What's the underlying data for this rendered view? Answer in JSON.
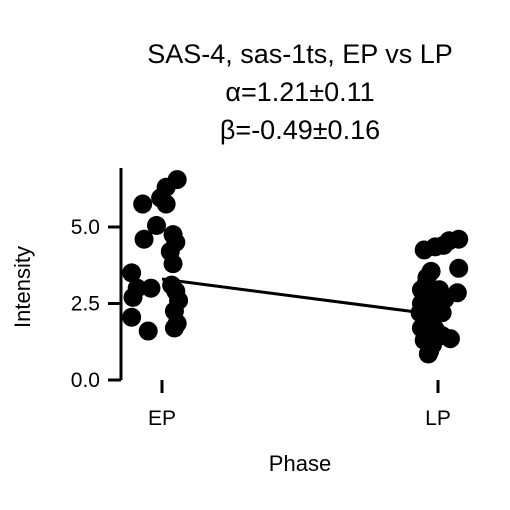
{
  "chart_data": {
    "type": "scatter",
    "title_lines": [
      "SAS-4, sas-1ts, EP vs LP",
      "α=1.21±0.11",
      "β=-0.49±0.16"
    ],
    "xlabel": "Phase",
    "ylabel": "Intensity",
    "categories": [
      "EP",
      "LP"
    ],
    "ylim": [
      0,
      6.9
    ],
    "yticks": [
      0.0,
      2.5,
      5.0
    ],
    "ytick_labels": [
      "0.0",
      "2.5",
      "5.0"
    ],
    "grid": false,
    "points": [
      {
        "category": "EP",
        "jitter": 0.11,
        "y": 6.55
      },
      {
        "category": "EP",
        "jitter": 0.03,
        "y": 6.3
      },
      {
        "category": "EP",
        "jitter": -0.14,
        "y": 5.75
      },
      {
        "category": "EP",
        "jitter": 0.03,
        "y": 5.75
      },
      {
        "category": "EP",
        "jitter": -0.01,
        "y": 5.95
      },
      {
        "category": "EP",
        "jitter": -0.04,
        "y": 5.05
      },
      {
        "category": "EP",
        "jitter": 0.08,
        "y": 4.75
      },
      {
        "category": "EP",
        "jitter": 0.1,
        "y": 4.5
      },
      {
        "category": "EP",
        "jitter": -0.13,
        "y": 4.6
      },
      {
        "category": "EP",
        "jitter": 0.06,
        "y": 4.2
      },
      {
        "category": "EP",
        "jitter": 0.08,
        "y": 3.8
      },
      {
        "category": "EP",
        "jitter": -0.22,
        "y": 3.5
      },
      {
        "category": "EP",
        "jitter": -0.18,
        "y": 3.0
      },
      {
        "category": "EP",
        "jitter": -0.08,
        "y": 3.0
      },
      {
        "category": "EP",
        "jitter": 0.07,
        "y": 3.1
      },
      {
        "category": "EP",
        "jitter": 0.1,
        "y": 2.9
      },
      {
        "category": "EP",
        "jitter": -0.21,
        "y": 2.7
      },
      {
        "category": "EP",
        "jitter": 0.12,
        "y": 2.6
      },
      {
        "category": "EP",
        "jitter": 0.09,
        "y": 2.25
      },
      {
        "category": "EP",
        "jitter": -0.22,
        "y": 2.05
      },
      {
        "category": "EP",
        "jitter": 0.11,
        "y": 1.85
      },
      {
        "category": "EP",
        "jitter": 0.09,
        "y": 1.7
      },
      {
        "category": "EP",
        "jitter": -0.1,
        "y": 1.6
      },
      {
        "category": "LP",
        "jitter": 0.15,
        "y": 4.6
      },
      {
        "category": "LP",
        "jitter": 0.08,
        "y": 4.55
      },
      {
        "category": "LP",
        "jitter": 0.04,
        "y": 4.4
      },
      {
        "category": "LP",
        "jitter": -0.02,
        "y": 4.35
      },
      {
        "category": "LP",
        "jitter": -0.1,
        "y": 4.25
      },
      {
        "category": "LP",
        "jitter": 0.15,
        "y": 3.65
      },
      {
        "category": "LP",
        "jitter": -0.05,
        "y": 3.55
      },
      {
        "category": "LP",
        "jitter": -0.08,
        "y": 3.35
      },
      {
        "category": "LP",
        "jitter": -0.09,
        "y": 3.1
      },
      {
        "category": "LP",
        "jitter": -0.12,
        "y": 2.95
      },
      {
        "category": "LP",
        "jitter": 0.01,
        "y": 2.95
      },
      {
        "category": "LP",
        "jitter": -0.02,
        "y": 2.7
      },
      {
        "category": "LP",
        "jitter": 0.14,
        "y": 2.85
      },
      {
        "category": "LP",
        "jitter": 0.05,
        "y": 2.65
      },
      {
        "category": "LP",
        "jitter": -0.12,
        "y": 2.5
      },
      {
        "category": "LP",
        "jitter": -0.07,
        "y": 2.4
      },
      {
        "category": "LP",
        "jitter": -0.13,
        "y": 2.2
      },
      {
        "category": "LP",
        "jitter": 0.03,
        "y": 2.2
      },
      {
        "category": "LP",
        "jitter": -0.08,
        "y": 1.95
      },
      {
        "category": "LP",
        "jitter": -0.04,
        "y": 1.8
      },
      {
        "category": "LP",
        "jitter": -0.12,
        "y": 1.7
      },
      {
        "category": "LP",
        "jitter": -0.02,
        "y": 1.65
      },
      {
        "category": "LP",
        "jitter": 0.03,
        "y": 1.45
      },
      {
        "category": "LP",
        "jitter": -0.1,
        "y": 1.3
      },
      {
        "category": "LP",
        "jitter": 0.09,
        "y": 1.35
      },
      {
        "category": "LP",
        "jitter": -0.04,
        "y": 1.15
      },
      {
        "category": "LP",
        "jitter": -0.06,
        "y": 0.95
      },
      {
        "category": "LP",
        "jitter": -0.07,
        "y": 0.85
      }
    ],
    "fit_line": {
      "x": [
        "EP",
        "LP"
      ],
      "y": [
        3.3,
        2.13
      ]
    },
    "marker_color": "#000000",
    "line_color": "#000000"
  }
}
